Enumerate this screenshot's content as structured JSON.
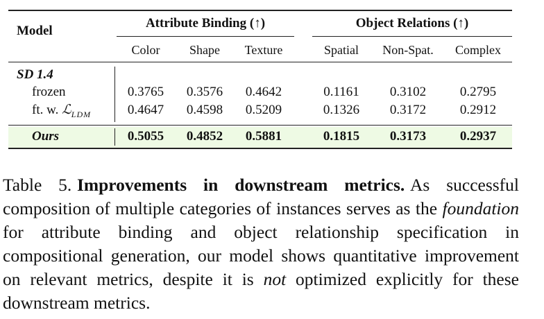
{
  "table": {
    "model_header": "Model",
    "groups": [
      {
        "label": "Attribute Binding (↑)",
        "columns": [
          "Color",
          "Shape",
          "Texture"
        ]
      },
      {
        "label": "Object Relations (↑)",
        "columns": [
          "Spatial",
          "Non-Spat.",
          "Complex"
        ]
      }
    ],
    "sections": [
      {
        "label": "SD 1.4",
        "rows": [
          {
            "label": "frozen",
            "values": [
              0.3765,
              0.3576,
              0.4642,
              0.1161,
              0.3102,
              0.2795
            ]
          },
          {
            "label": "ft. w. ",
            "math": "ℒ",
            "sub": "LDM",
            "values": [
              0.4647,
              0.4598,
              0.5209,
              0.1326,
              0.3172,
              0.2912
            ]
          }
        ]
      }
    ],
    "highlight_row": {
      "label": "Ours",
      "values": [
        0.5055,
        0.4852,
        0.5881,
        0.1815,
        0.3173,
        0.2937
      ]
    }
  },
  "caption": {
    "label": "Table 5.",
    "title": "Improvements in downstream metrics.",
    "parts": [
      {
        "text": "As successful composition of multiple categories of instances serves as the "
      },
      {
        "italic": "foundation"
      },
      {
        "text": " for attribute binding and object relationship specification in compositional generation, our model shows quantitative improvement on relevant metrics, despite it is "
      },
      {
        "italic": "not"
      },
      {
        "text": " optimized explicitly for these downstream metrics."
      }
    ]
  }
}
